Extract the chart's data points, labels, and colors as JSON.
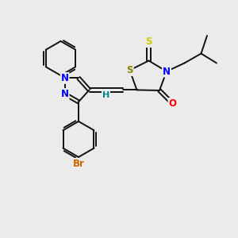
{
  "background_color": "#ebebeb",
  "figsize": [
    3.0,
    3.0
  ],
  "dpi": 100,
  "atom_colors": {
    "N": "#0000ee",
    "O": "#ff0000",
    "S_thioxo": "#cccc00",
    "S_ring": "#888800",
    "Br": "#cc6600",
    "H": "#008888",
    "C": "#000000"
  },
  "bond_color": "#111111",
  "bond_width": 1.4
}
